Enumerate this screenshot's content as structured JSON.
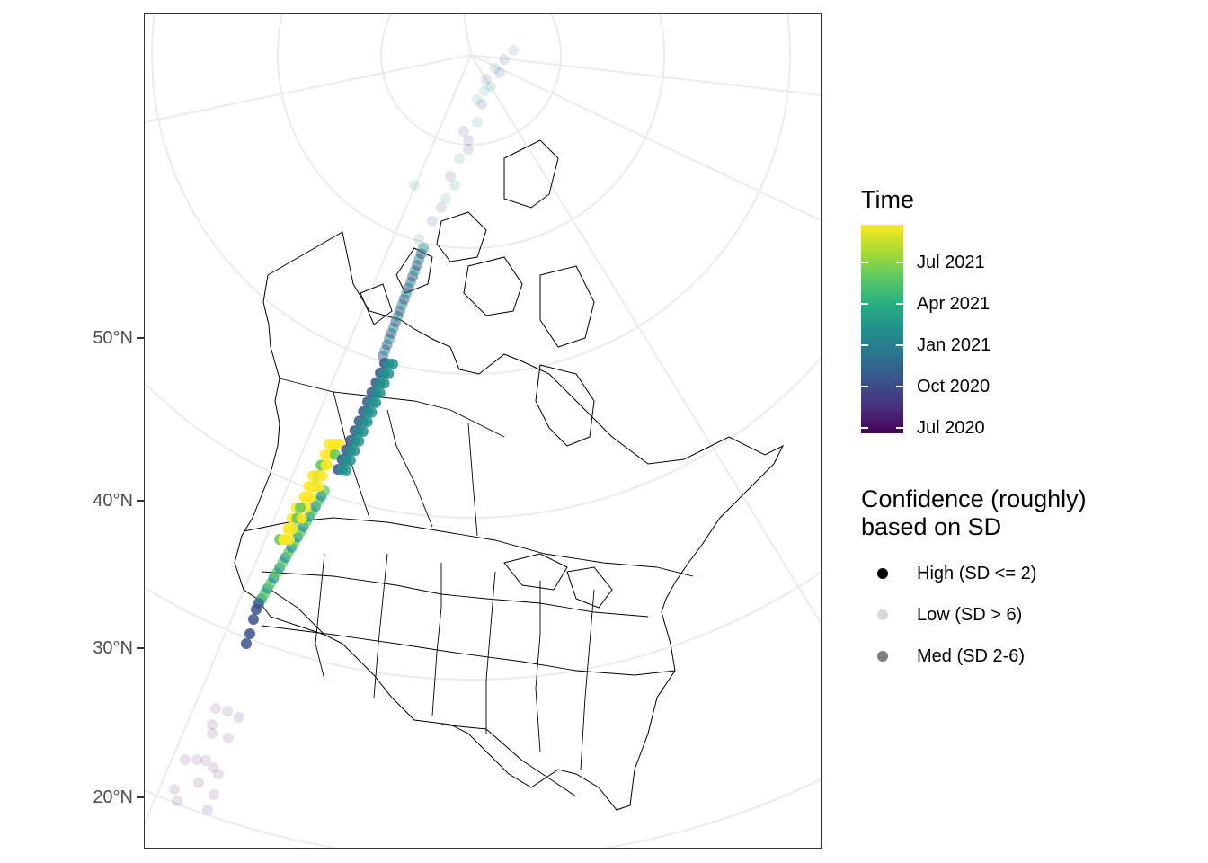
{
  "map": {
    "lat_labels": [
      "50°N",
      "40°N",
      "30°N",
      "20°N"
    ],
    "region": "North America (Canada, USA, Alaska)",
    "track_colors": [
      "#440154",
      "#3b528b",
      "#21918c",
      "#5ec962",
      "#fde725"
    ]
  },
  "legend_time": {
    "title": "Time",
    "labels": [
      "Jul 2021",
      "Apr 2021",
      "Jan 2021",
      "Oct 2020",
      "Jul 2020"
    ]
  },
  "legend_confidence": {
    "title_line1": "Confidence (roughly)",
    "title_line2": "based on SD",
    "items": [
      {
        "label": "High (SD <= 2)",
        "alpha": 1.0
      },
      {
        "label": "Low (SD > 6)",
        "alpha": 0.15
      },
      {
        "label": "Med (SD 2-6)",
        "alpha": 0.5
      }
    ]
  }
}
